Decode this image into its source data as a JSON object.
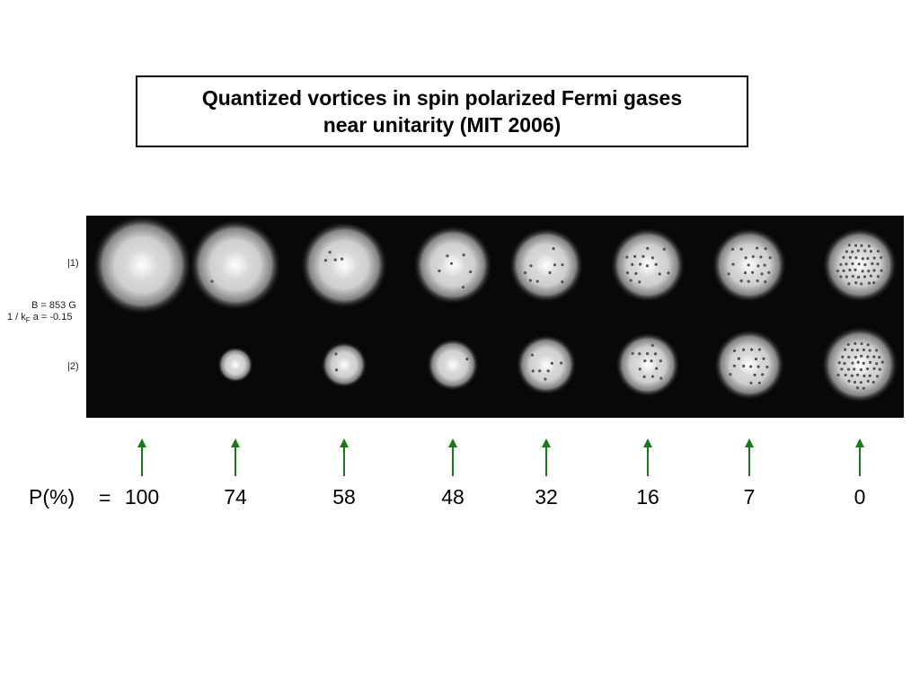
{
  "title": {
    "text": "Quantized vortices in spin polarized Fermi gases\nnear unitarity  (MIT 2006)"
  },
  "image": {
    "row_labels": [
      "|1)",
      "|2)"
    ],
    "field_label": "B = 853 G",
    "interaction_label_prefix": "1 / k",
    "interaction_label_subscript": "F",
    "interaction_label_suffix": " a = -0.15"
  },
  "polarization": {
    "label": "P(%)",
    "equals": "=",
    "values": [
      "100",
      "74",
      "58",
      "48",
      "32",
      "16",
      "7",
      "0"
    ]
  },
  "colors": {
    "arrow": "#1a7a1a",
    "border": "#000000",
    "background": "#ffffff",
    "panel": "#080808"
  }
}
